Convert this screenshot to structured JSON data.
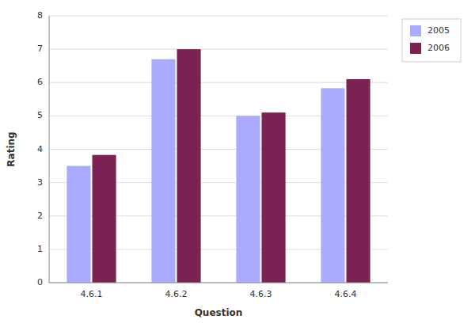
{
  "chart_data": {
    "type": "bar",
    "xlabel": "Question",
    "ylabel": "Rating",
    "categories": [
      "4.6.1",
      "4.6.2",
      "4.6.3",
      "4.6.4"
    ],
    "series": [
      {
        "name": "2005",
        "color": "#AAAAFF",
        "values": [
          3.5,
          6.7,
          5.0,
          5.83
        ]
      },
      {
        "name": "2006",
        "color": "#7B2252",
        "values": [
          3.83,
          7.0,
          5.1,
          6.1
        ]
      }
    ],
    "ylim": [
      0,
      8
    ],
    "yticks": [
      0,
      1,
      2,
      3,
      4,
      5,
      6,
      7,
      8
    ],
    "grid": true,
    "legend": "right"
  }
}
